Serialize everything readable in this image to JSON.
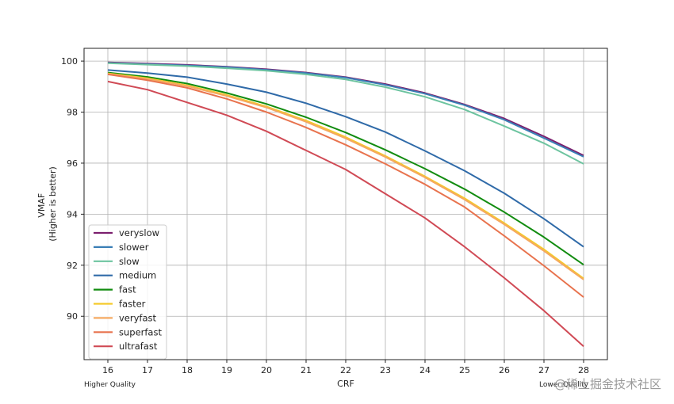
{
  "chart_data": {
    "type": "line",
    "title": "",
    "xlabel": "CRF",
    "ylabel_lines": [
      "VMAF",
      "(Higher is better)"
    ],
    "x": [
      16,
      17,
      18,
      19,
      20,
      21,
      22,
      23,
      24,
      25,
      26,
      27,
      28
    ],
    "xlim": [
      15.4,
      28.6
    ],
    "ylim": [
      88.3,
      100.5
    ],
    "yticks": [
      90,
      92,
      94,
      96,
      98,
      100
    ],
    "grid": true,
    "legend_position": "lower-left",
    "annotations": {
      "left": "Higher Quality",
      "right": "Lower Quality"
    },
    "series": [
      {
        "name": "veryslow",
        "color": "#7b1f6e",
        "values": [
          99.95,
          99.9,
          99.85,
          99.78,
          99.68,
          99.55,
          99.37,
          99.1,
          98.75,
          98.3,
          97.75,
          97.05,
          96.3
        ]
      },
      {
        "name": "slower",
        "color": "#3a7fb6",
        "values": [
          99.93,
          99.88,
          99.83,
          99.76,
          99.66,
          99.53,
          99.35,
          99.07,
          98.72,
          98.27,
          97.7,
          96.98,
          96.25
        ]
      },
      {
        "name": "slow",
        "color": "#6dc4a0",
        "values": [
          99.92,
          99.86,
          99.8,
          99.72,
          99.62,
          99.48,
          99.28,
          98.98,
          98.6,
          98.1,
          97.45,
          96.78,
          95.97
        ]
      },
      {
        "name": "medium",
        "color": "#2f6aa8",
        "values": [
          99.65,
          99.53,
          99.37,
          99.1,
          98.78,
          98.35,
          97.82,
          97.22,
          96.48,
          95.7,
          94.82,
          93.82,
          92.72
        ]
      },
      {
        "name": "fast",
        "color": "#128c10",
        "values": [
          99.55,
          99.38,
          99.12,
          98.75,
          98.32,
          97.8,
          97.2,
          96.52,
          95.78,
          94.98,
          94.08,
          93.1,
          92.02
        ]
      },
      {
        "name": "faster",
        "color": "#f5c92a",
        "values": [
          99.52,
          99.33,
          99.05,
          98.67,
          98.22,
          97.67,
          97.02,
          96.28,
          95.48,
          94.62,
          93.65,
          92.62,
          91.48
        ]
      },
      {
        "name": "veryfast",
        "color": "#f5a860",
        "values": [
          99.5,
          99.3,
          99.02,
          98.63,
          98.18,
          97.62,
          96.97,
          96.24,
          95.44,
          94.57,
          93.6,
          92.56,
          91.44
        ]
      },
      {
        "name": "superfast",
        "color": "#e8734e",
        "values": [
          99.48,
          99.25,
          98.95,
          98.52,
          98.0,
          97.4,
          96.72,
          95.97,
          95.17,
          94.28,
          93.15,
          91.98,
          90.75
        ]
      },
      {
        "name": "ultrafast",
        "color": "#d04a55",
        "values": [
          99.2,
          98.88,
          98.38,
          97.88,
          97.25,
          96.5,
          95.75,
          94.8,
          93.85,
          92.72,
          91.5,
          90.22,
          88.82
        ]
      }
    ]
  },
  "watermark": "@稀土掘金技术社区"
}
